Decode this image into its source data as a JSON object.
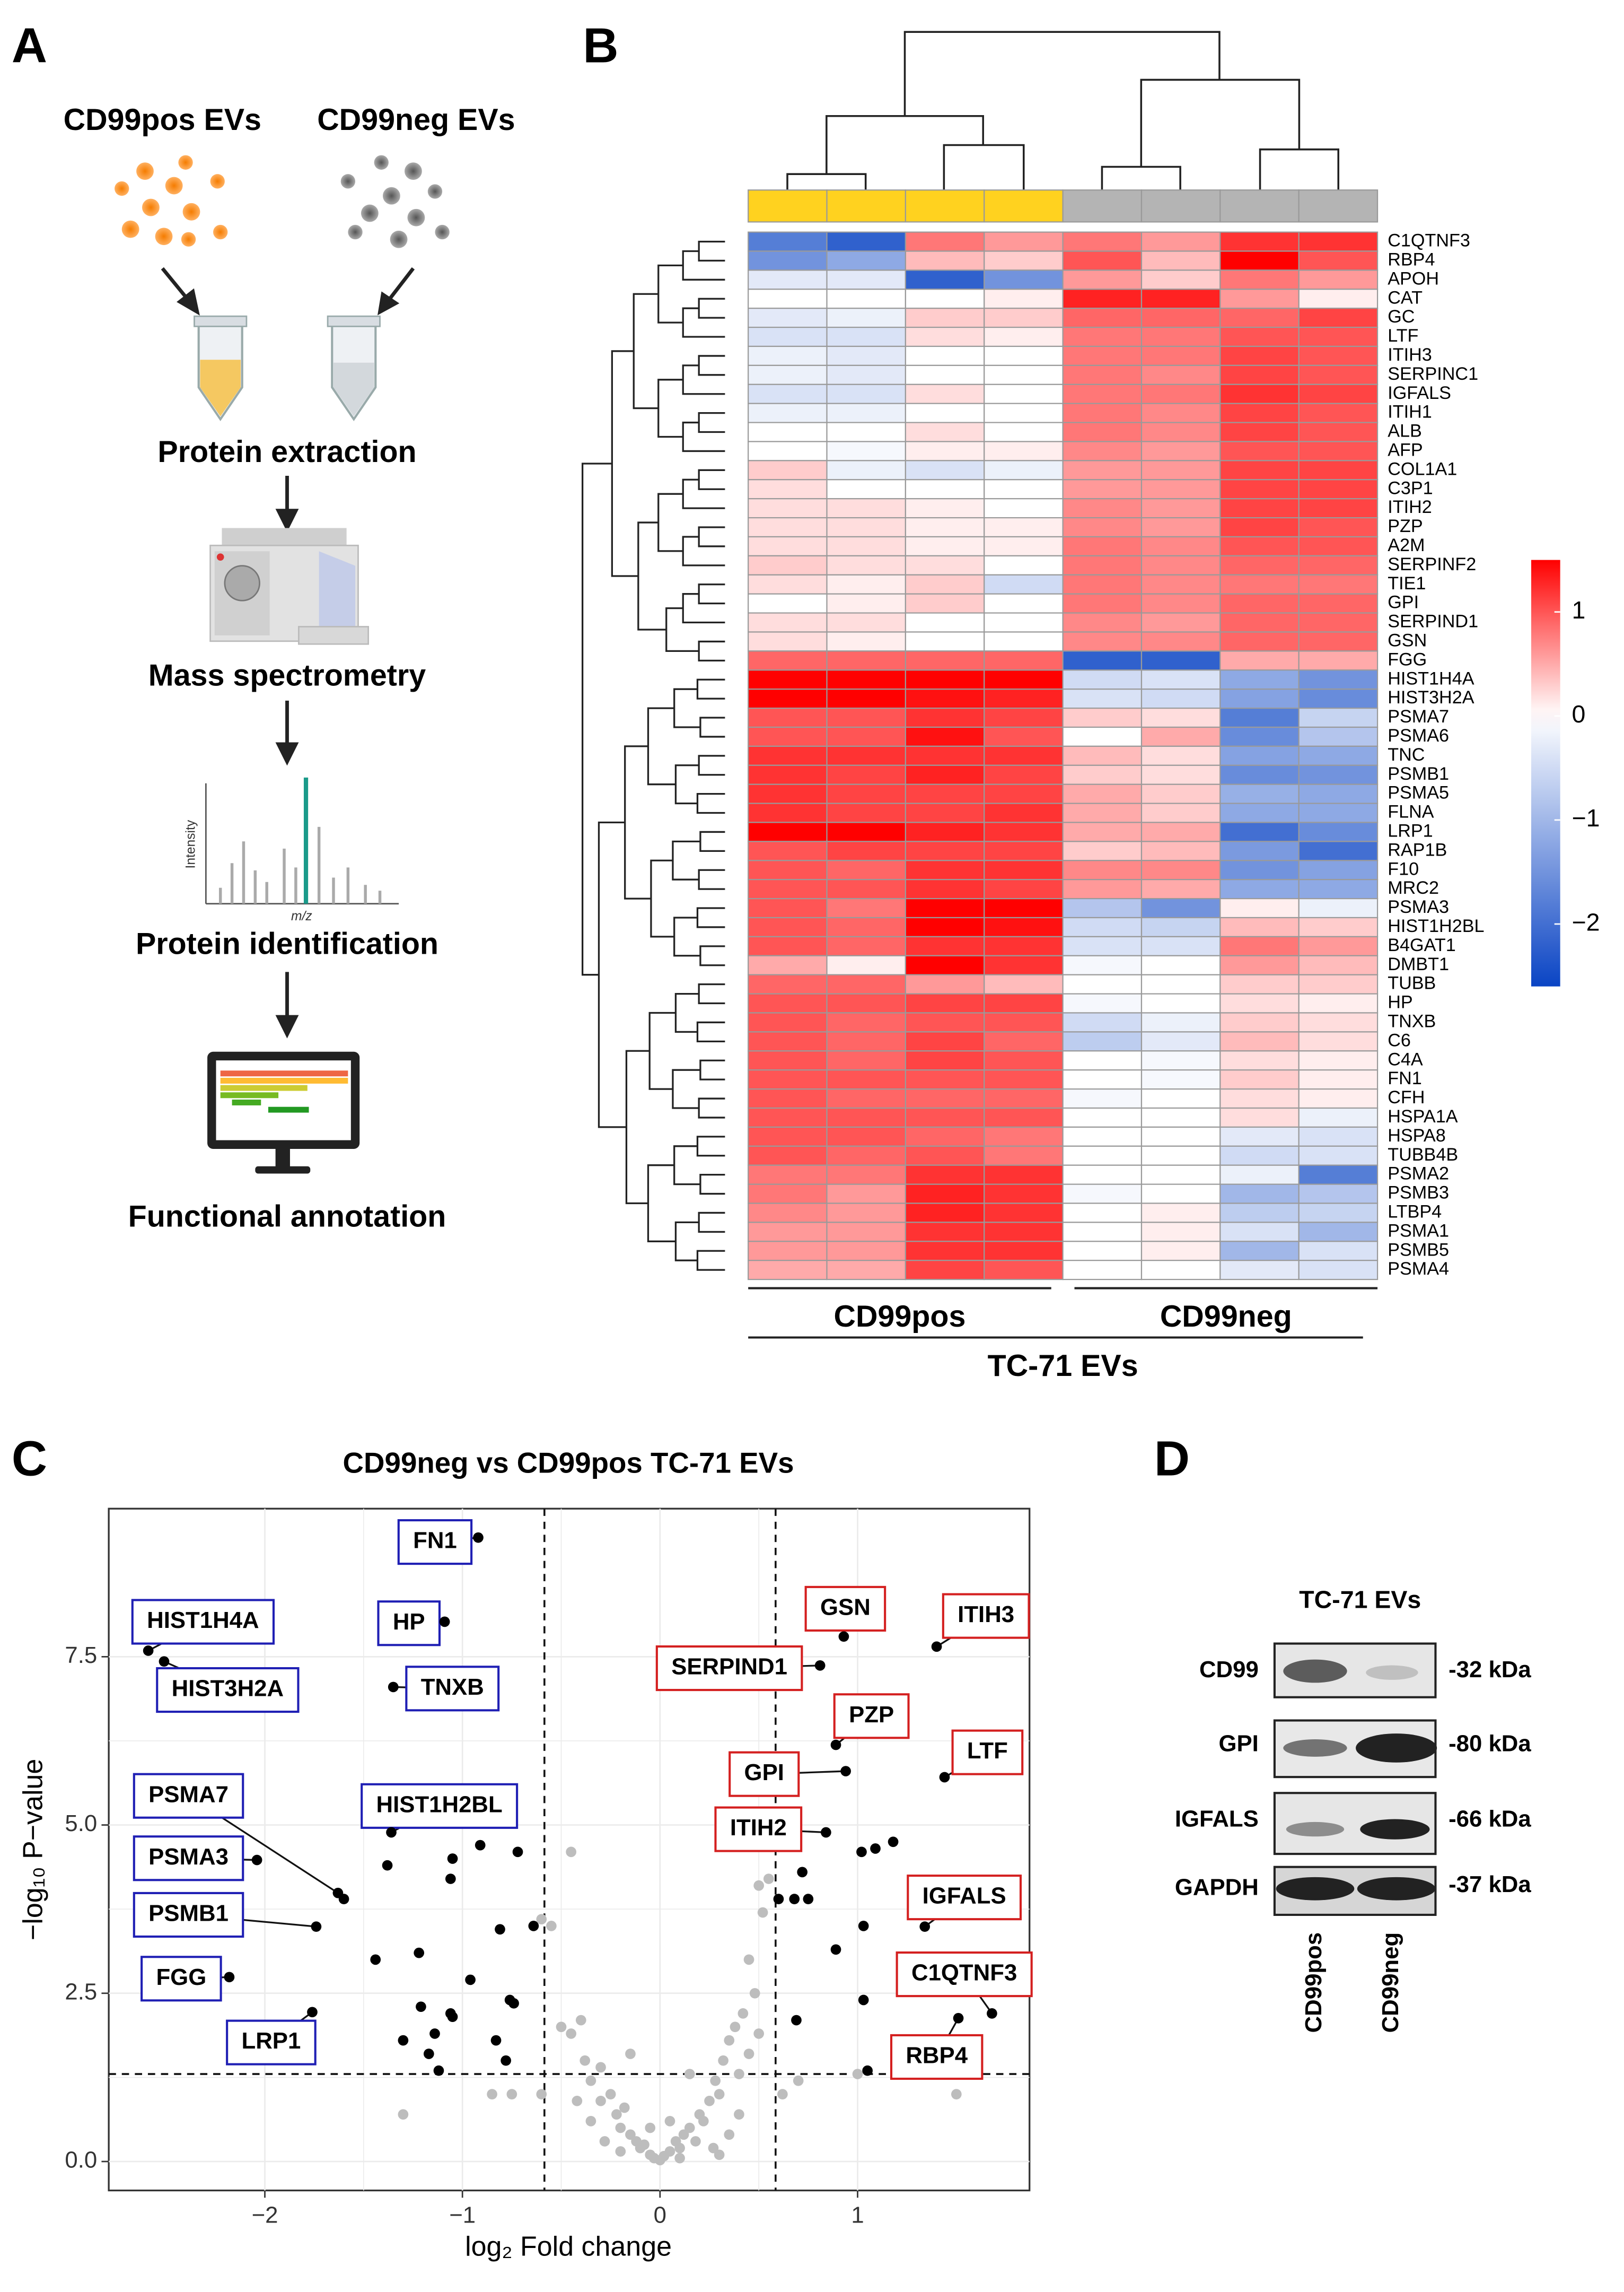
{
  "panel_labels": [
    "A",
    "B",
    "C",
    "D"
  ],
  "panel_a": {
    "sources": [
      "CD99pos EVs",
      "CD99neg EVs"
    ],
    "steps": [
      "Protein extraction",
      "Mass spectrometry",
      "Protein identification",
      "Functional annotation"
    ],
    "spectrum_axes": [
      "Intensity",
      "m/z"
    ]
  },
  "chart_data": [
    {
      "type": "heatmap",
      "rows": [
        "C1QTNF3",
        "RBP4",
        "APOH",
        "CAT",
        "GC",
        "LTF",
        "ITIH3",
        "SERPINC1",
        "IGFALS",
        "ITIH1",
        "ALB",
        "AFP",
        "COL1A1",
        "C3P1",
        "ITIH2",
        "PZP",
        "A2M",
        "SERPINF2",
        "TIE1",
        "GPI",
        "SERPIND1",
        "GSN",
        "FGG",
        "HIST1H4A",
        "HIST3H2A",
        "PSMA7",
        "PSMA6",
        "TNC",
        "PSMB1",
        "PSMA5",
        "FLNA",
        "LRP1",
        "RAP1B",
        "F10",
        "MRC2",
        "PSMA3",
        "HIST1H2BL",
        "B4GAT1",
        "DMBT1",
        "TUBB",
        "HP",
        "TNXB",
        "C6",
        "C4A",
        "FN1",
        "CFH",
        "HSPA1A",
        "HSPA8",
        "TUBB4B",
        "PSMA2",
        "PSMB3",
        "LTBP4",
        "PSMA1",
        "PSMB5",
        "PSMA4"
      ],
      "values": [
        [
          -1.8,
          -2.2,
          0.8,
          0.6,
          0.8,
          0.6,
          1.2,
          1.2
        ],
        [
          -1.5,
          -1.2,
          0.4,
          0.3,
          1.0,
          0.4,
          1.6,
          1.0
        ],
        [
          -0.3,
          -0.3,
          -2.2,
          -1.5,
          0.6,
          0.3,
          0.8,
          0.6
        ],
        [
          0,
          0,
          0,
          0.1,
          1.3,
          1.3,
          0.6,
          0.1
        ],
        [
          -0.3,
          -0.2,
          0.3,
          0.3,
          0.9,
          0.9,
          0.9,
          1.1
        ],
        [
          -0.4,
          -0.4,
          0.2,
          0.1,
          0.8,
          0.8,
          1.0,
          1.0
        ],
        [
          -0.2,
          -0.3,
          0,
          0,
          0.8,
          0.8,
          1.1,
          1.0
        ],
        [
          -0.2,
          -0.3,
          0,
          0,
          0.8,
          0.7,
          1.1,
          1.0
        ],
        [
          -0.4,
          -0.4,
          0.2,
          0,
          0.8,
          0.8,
          1.2,
          1.1
        ],
        [
          -0.2,
          -0.2,
          0,
          0,
          0.8,
          0.7,
          1.1,
          1.0
        ],
        [
          0,
          0,
          0.2,
          0,
          0.8,
          0.7,
          1.1,
          1.0
        ],
        [
          0,
          -0.1,
          0.1,
          0.1,
          0.7,
          0.6,
          1.0,
          1.0
        ],
        [
          0.3,
          -0.2,
          -0.4,
          -0.2,
          0.6,
          0.6,
          1.1,
          1.1
        ],
        [
          0.2,
          0,
          0,
          0,
          0.6,
          0.6,
          1.1,
          1.1
        ],
        [
          0.2,
          0.2,
          0.1,
          0,
          0.7,
          0.6,
          1.1,
          1.1
        ],
        [
          0.2,
          0.2,
          0.1,
          0.1,
          0.7,
          0.6,
          1.1,
          1.0
        ],
        [
          0.2,
          0.2,
          0.1,
          0.1,
          0.8,
          0.7,
          1.0,
          1.0
        ],
        [
          0.3,
          0.2,
          0.2,
          0,
          0.8,
          0.7,
          0.9,
          0.9
        ],
        [
          0.2,
          0.1,
          0.3,
          -0.5,
          0.8,
          0.7,
          0.8,
          0.8
        ],
        [
          0,
          0.1,
          0.3,
          0,
          0.8,
          0.7,
          0.9,
          0.9
        ],
        [
          0.2,
          0.2,
          0,
          0,
          0.7,
          0.6,
          0.9,
          0.9
        ],
        [
          0.2,
          0.1,
          0,
          0,
          0.7,
          0.7,
          0.9,
          0.9
        ],
        [
          0.9,
          0.9,
          0.9,
          0.9,
          -2.2,
          -2.2,
          0.5,
          0.5
        ],
        [
          1.5,
          1.5,
          1.6,
          1.5,
          -0.5,
          -0.4,
          -1.2,
          -1.5
        ],
        [
          1.5,
          1.6,
          1.4,
          1.3,
          -0.4,
          -0.5,
          -1.3,
          -1.6
        ],
        [
          1.0,
          1.0,
          1.2,
          1.1,
          0.3,
          0.2,
          -1.8,
          -0.6
        ],
        [
          1.0,
          1.0,
          1.4,
          1.0,
          0,
          0.5,
          -1.6,
          -0.8
        ],
        [
          1.2,
          1.2,
          1.2,
          1.2,
          0.4,
          0.2,
          -1.3,
          -1.2
        ],
        [
          1.2,
          1.1,
          1.3,
          1.1,
          0.3,
          0.2,
          -1.6,
          -1.5
        ],
        [
          1.2,
          1.1,
          1.1,
          1.1,
          0.5,
          0.3,
          -1.1,
          -1.2
        ],
        [
          1.2,
          1.1,
          1.1,
          1.2,
          0.5,
          0.3,
          -1.2,
          -1.2
        ],
        [
          1.6,
          1.6,
          1.3,
          1.2,
          0.5,
          0.5,
          -2.0,
          -1.6
        ],
        [
          1.0,
          1.1,
          1.1,
          1.1,
          0.3,
          0.4,
          -1.4,
          -2.0
        ],
        [
          1.0,
          0.9,
          1.2,
          1.2,
          0.7,
          0.7,
          -1.5,
          -1.3
        ],
        [
          1.0,
          1.0,
          1.2,
          1.1,
          0.6,
          0.5,
          -1.2,
          -1.2
        ],
        [
          1.0,
          0.8,
          1.8,
          1.5,
          -0.8,
          -1.5,
          0.1,
          -0.2
        ],
        [
          1.0,
          0.9,
          1.5,
          1.4,
          -0.5,
          -0.6,
          0.4,
          0.3
        ],
        [
          1.0,
          0.9,
          1.2,
          1.2,
          -0.4,
          -0.4,
          0.8,
          0.6
        ],
        [
          0.5,
          0.1,
          1.5,
          1.2,
          -0.1,
          0,
          0.6,
          0.4
        ],
        [
          0.9,
          0.9,
          0.6,
          0.4,
          0,
          0,
          0.3,
          0.3
        ],
        [
          1.0,
          1.0,
          1.1,
          1.1,
          -0.1,
          0,
          0.2,
          0.1
        ],
        [
          1.0,
          0.9,
          1.0,
          1.0,
          -0.5,
          -0.2,
          0.3,
          0.2
        ],
        [
          1.0,
          0.9,
          1.1,
          0.9,
          -0.7,
          -0.3,
          0.4,
          0.2
        ],
        [
          1.0,
          0.9,
          1.1,
          1.0,
          0,
          -0.1,
          0.2,
          0.1
        ],
        [
          1.0,
          1.0,
          1.0,
          1.0,
          0,
          -0.1,
          0.3,
          0.1
        ],
        [
          1.0,
          0.9,
          0.9,
          0.9,
          -0.1,
          0,
          0.2,
          0.1
        ],
        [
          1.0,
          1.0,
          1.0,
          1.0,
          0,
          0,
          0.2,
          -0.2
        ],
        [
          1.0,
          1.0,
          0.9,
          0.8,
          0,
          0,
          -0.3,
          -0.4
        ],
        [
          1.0,
          0.9,
          1.0,
          0.8,
          0,
          0,
          -0.5,
          -0.4
        ],
        [
          0.8,
          0.8,
          1.2,
          1.2,
          0,
          0,
          -0.2,
          -1.8
        ],
        [
          0.8,
          0.6,
          1.3,
          1.2,
          -0.1,
          0,
          -1.0,
          -0.8
        ],
        [
          0.7,
          0.6,
          1.3,
          1.2,
          0,
          0.1,
          -0.7,
          -0.6
        ],
        [
          0.6,
          0.6,
          1.2,
          1.2,
          0,
          0.1,
          -0.4,
          -1.0
        ],
        [
          0.6,
          0.6,
          1.2,
          1.2,
          0,
          0.1,
          -1.0,
          -0.4
        ],
        [
          0.5,
          0.5,
          1.1,
          1.0,
          0,
          0,
          -0.3,
          -0.4
        ]
      ],
      "column_colors": [
        "#ffd21f",
        "#ffd21f",
        "#ffd21f",
        "#ffd21f",
        "#b4b4b4",
        "#b4b4b4",
        "#b4b4b4",
        "#b4b4b4"
      ],
      "group_labels": [
        "CD99pos",
        "CD99neg"
      ],
      "footer": "TC-71 EVs",
      "colorscale": {
        "low": "#0a44c4",
        "mid": "#ffffff",
        "high": "#ff0000"
      },
      "clim": [
        -2.6,
        1.5
      ],
      "cticks": [
        1,
        0,
        {
          "value": -1,
          "label": "−1"
        },
        {
          "value": -2,
          "label": "−2"
        }
      ]
    },
    {
      "type": "scatter",
      "title": "CD99neg vs CD99pos TC-71 EVs",
      "xlabel": "log₂ Fold change",
      "ylabel": "−log₁₀ P−value",
      "xlim": [
        -2.79,
        1.87
      ],
      "ylim": [
        -0.43,
        9.7
      ],
      "xticks": [
        {
          "value": -2,
          "label": "−2"
        },
        {
          "value": -1,
          "label": "−1"
        },
        0,
        1
      ],
      "yticks": [
        {
          "value": 0,
          "label": "0.0"
        },
        2.5,
        {
          "value": 5,
          "label": "5.0"
        },
        7.5
      ],
      "grid": true,
      "thresholds": {
        "x": [
          -0.585,
          0.585
        ],
        "y": 1.3
      },
      "series": [
        {
          "color": "#bdbdbd",
          "x": [
            -0.6,
            -0.55,
            -0.45,
            -0.5,
            -0.45,
            -0.4,
            -0.38,
            -0.35,
            -0.3,
            -0.3,
            -0.25,
            -0.22,
            -0.2,
            -0.18,
            -0.15,
            -0.12,
            -0.1,
            -0.08,
            -0.05,
            -0.03,
            0,
            0.02,
            0.05,
            0.08,
            0.1,
            0.12,
            0.15,
            0.18,
            0.2,
            0.22,
            0.25,
            0.28,
            0.3,
            0.32,
            0.35,
            0.38,
            0.4,
            0.42,
            0.45,
            0.48,
            0.5,
            0.52,
            0.55,
            0.5,
            0.45,
            -0.6,
            -0.75,
            -0.85,
            -1.3,
            0.62,
            0.7,
            1.0,
            1.5,
            0.35,
            -0.35,
            -0.28,
            0.27,
            -0.15,
            0.15,
            0.05,
            -0.05,
            -0.42,
            0.4,
            -0.2,
            0.1,
            0.3
          ],
          "y": [
            3.6,
            3.5,
            4.6,
            2.0,
            1.9,
            2.1,
            1.5,
            1.2,
            1.4,
            0.9,
            1.0,
            0.7,
            0.5,
            0.8,
            0.4,
            0.3,
            0.2,
            0.25,
            0.1,
            0.05,
            0.02,
            0.08,
            0.15,
            0.3,
            0.2,
            0.4,
            0.5,
            0.3,
            0.7,
            0.6,
            0.9,
            1.2,
            1.0,
            1.5,
            1.8,
            2.0,
            1.3,
            2.2,
            1.6,
            2.5,
            4.1,
            3.7,
            4.2,
            1.9,
            3.0,
            1.0,
            1.0,
            1.0,
            0.7,
            1.0,
            1.2,
            1.3,
            1.0,
            0.4,
            0.6,
            0.3,
            0.2,
            1.6,
            1.3,
            0.6,
            0.5,
            0.9,
            0.7,
            0.15,
            0.05,
            0.1
          ]
        },
        {
          "color": "#000000",
          "x": [
            -1.6,
            -1.38,
            -1.05,
            -0.91,
            -0.72,
            -1.06,
            -1.44,
            -1.22,
            -0.81,
            -0.64,
            -1.21,
            -1.05,
            -1.06,
            -0.96,
            -0.76,
            -0.74,
            -1.14,
            -1.3,
            -0.83,
            -0.78,
            -1.12,
            -1.17,
            0.6,
            0.68,
            1.02,
            1.09,
            1.18,
            1.03,
            0.89,
            0.69,
            1.03,
            1.05,
            0.72,
            0.75
          ],
          "y": [
            3.9,
            4.4,
            4.5,
            4.7,
            4.6,
            4.2,
            3.0,
            3.1,
            3.45,
            3.5,
            2.3,
            2.15,
            2.2,
            2.7,
            2.4,
            2.35,
            1.9,
            1.8,
            1.8,
            1.5,
            1.35,
            1.6,
            3.9,
            3.9,
            4.6,
            4.65,
            4.75,
            3.5,
            3.15,
            2.1,
            2.4,
            1.35,
            4.3,
            3.9
          ]
        },
        {
          "color": "#000000",
          "label_color": "#1f1fb4",
          "labels": [
            "FN1",
            "HIST1H4A",
            "HIST3H2A",
            "HP",
            "TNXB",
            "PSMA7",
            "PSMA3",
            "PSMB1",
            "FGG",
            "LRP1",
            "HIST1H2BL"
          ],
          "x": [
            -0.92,
            -2.59,
            -2.51,
            -1.09,
            -1.35,
            -1.63,
            -2.04,
            -1.74,
            -2.18,
            -1.76,
            -1.36
          ],
          "y": [
            9.27,
            7.59,
            7.43,
            8.02,
            7.05,
            3.99,
            4.48,
            3.49,
            2.74,
            2.22,
            4.89
          ]
        },
        {
          "color": "#000000",
          "label_color": "#d42020",
          "labels": [
            "GSN",
            "ITIH3",
            "SERPIND1",
            "PZP",
            "GPI",
            "LTF",
            "ITIH2",
            "IGFALS",
            "C1QTNF3",
            "RBP4"
          ],
          "x": [
            0.93,
            1.4,
            0.81,
            0.89,
            0.94,
            1.44,
            0.84,
            1.34,
            1.68,
            1.51
          ],
          "y": [
            7.8,
            7.65,
            7.37,
            6.19,
            5.8,
            5.71,
            4.89,
            3.49,
            2.2,
            2.13
          ]
        }
      ]
    }
  ],
  "panel_d": {
    "title": "TC-71 EVs",
    "rows": [
      {
        "name": "CD99",
        "size": "-32 kDa"
      },
      {
        "name": "GPI",
        "size": "-80 kDa"
      },
      {
        "name": "IGFALS",
        "size": "-66 kDa"
      },
      {
        "name": "GAPDH",
        "size": "-37 kDa"
      }
    ],
    "columns": [
      "CD99pos",
      "CD99neg"
    ]
  }
}
